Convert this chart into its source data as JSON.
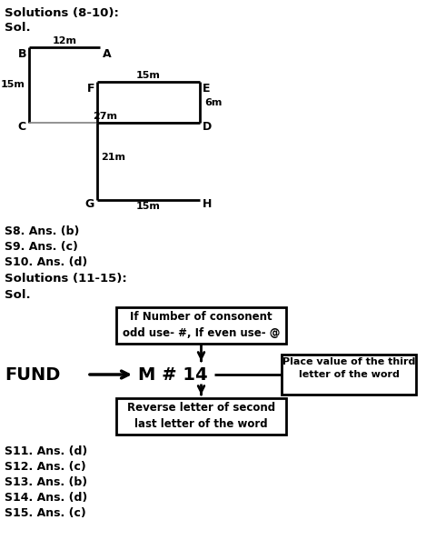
{
  "title1": "Solutions (8-10):",
  "sol1": "Sol.",
  "answers_810": [
    "S8. Ans. (b)",
    "S9. Ans. (c)",
    "S10. Ans. (d)"
  ],
  "title2": "Solutions (11-15):",
  "sol2": "Sol.",
  "answers_1115": [
    "S11. Ans. (d)",
    "S12. Ans. (c)",
    "S13. Ans. (b)",
    "S14. Ans. (d)",
    "S15. Ans. (c)"
  ],
  "bg_color": "#ffffff",
  "box2_text1": "If Number of consonent",
  "box2_text2": "odd use- #, If even use- @",
  "fund_text": "FUND",
  "result_text": "M # 14",
  "box3_text1": "Place value of the third",
  "box3_text2": "letter of the word",
  "box4_text1": "Reverse letter of second",
  "box4_text2": "last letter of the word",
  "fig_w": 4.81,
  "fig_h": 5.94,
  "dpi": 100
}
